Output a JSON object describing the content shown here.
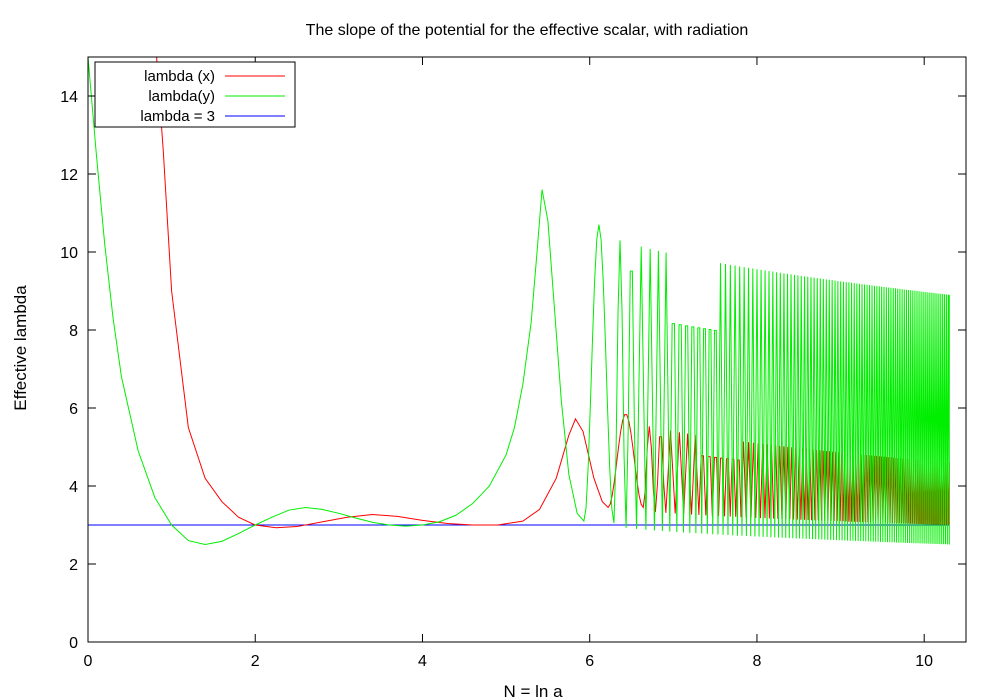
{
  "chart_data": {
    "type": "line",
    "title": "The slope of the potential for the effective scalar, with radiation",
    "xlabel": "N = ln a",
    "ylabel": "Effective lambda",
    "xlim": [
      0,
      10.5
    ],
    "ylim": [
      0,
      15
    ],
    "xticks": [
      0,
      2,
      4,
      6,
      8,
      10
    ],
    "yticks": [
      0,
      2,
      4,
      6,
      8,
      10,
      12,
      14
    ],
    "grid": false,
    "legend_position": "top-left",
    "series": [
      {
        "name": "lambda (x)",
        "color": "#ff0000",
        "points": [
          [
            0.82,
            15
          ],
          [
            0.9,
            12.6
          ],
          [
            1.0,
            9.0
          ],
          [
            1.2,
            5.5
          ],
          [
            1.4,
            4.2
          ],
          [
            1.6,
            3.6
          ],
          [
            1.8,
            3.2
          ],
          [
            2.0,
            3.0
          ],
          [
            2.25,
            2.93
          ],
          [
            2.5,
            2.96
          ],
          [
            2.8,
            3.08
          ],
          [
            3.1,
            3.2
          ],
          [
            3.4,
            3.27
          ],
          [
            3.7,
            3.22
          ],
          [
            4.0,
            3.12
          ],
          [
            4.3,
            3.04
          ],
          [
            4.6,
            3.0
          ],
          [
            4.9,
            3.0
          ],
          [
            5.2,
            3.1
          ],
          [
            5.4,
            3.4
          ],
          [
            5.6,
            4.2
          ],
          [
            5.75,
            5.3
          ],
          [
            5.83,
            5.72
          ],
          [
            5.92,
            5.4
          ],
          [
            6.05,
            4.2
          ],
          [
            6.15,
            3.6
          ],
          [
            6.22,
            3.45
          ]
        ],
        "oscillation": {
          "start": 6.22,
          "end": 10.3,
          "period_start": 0.42,
          "period_end": 0.022,
          "peak_start": 5.85,
          "peak_end": 4.6,
          "trough_start": 3.45,
          "trough_end": 3.0
        }
      },
      {
        "name": "lambda(y)",
        "color": "#00ee00",
        "points": [
          [
            0.0,
            15
          ],
          [
            0.1,
            12.5
          ],
          [
            0.2,
            10.2
          ],
          [
            0.3,
            8.3
          ],
          [
            0.4,
            6.8
          ],
          [
            0.6,
            4.9
          ],
          [
            0.8,
            3.7
          ],
          [
            1.0,
            3.0
          ],
          [
            1.2,
            2.6
          ],
          [
            1.4,
            2.5
          ],
          [
            1.6,
            2.58
          ],
          [
            1.8,
            2.78
          ],
          [
            2.0,
            3.0
          ],
          [
            2.2,
            3.2
          ],
          [
            2.4,
            3.38
          ],
          [
            2.6,
            3.45
          ],
          [
            2.8,
            3.4
          ],
          [
            3.0,
            3.3
          ],
          [
            3.2,
            3.18
          ],
          [
            3.4,
            3.07
          ],
          [
            3.6,
            3.0
          ],
          [
            3.8,
            2.97
          ],
          [
            4.0,
            3.0
          ],
          [
            4.2,
            3.08
          ],
          [
            4.4,
            3.25
          ],
          [
            4.6,
            3.55
          ],
          [
            4.8,
            4.0
          ],
          [
            5.0,
            4.8
          ],
          [
            5.1,
            5.5
          ],
          [
            5.2,
            6.6
          ],
          [
            5.3,
            8.2
          ],
          [
            5.37,
            10.0
          ],
          [
            5.43,
            11.6
          ],
          [
            5.5,
            10.8
          ],
          [
            5.58,
            8.5
          ],
          [
            5.66,
            6.2
          ],
          [
            5.75,
            4.3
          ],
          [
            5.85,
            3.3
          ],
          [
            5.93,
            3.1
          ]
        ],
        "oscillation": {
          "start": 5.93,
          "end": 10.3,
          "period_start": 0.36,
          "period_end": 0.022,
          "peak_start": 10.7,
          "peak_end": 8.9,
          "trough_start": 3.05,
          "trough_end": 2.5
        }
      },
      {
        "name": "lambda = 3",
        "color": "#0000ff",
        "points": [
          [
            0,
            3
          ],
          [
            10.3,
            3
          ]
        ]
      }
    ]
  }
}
